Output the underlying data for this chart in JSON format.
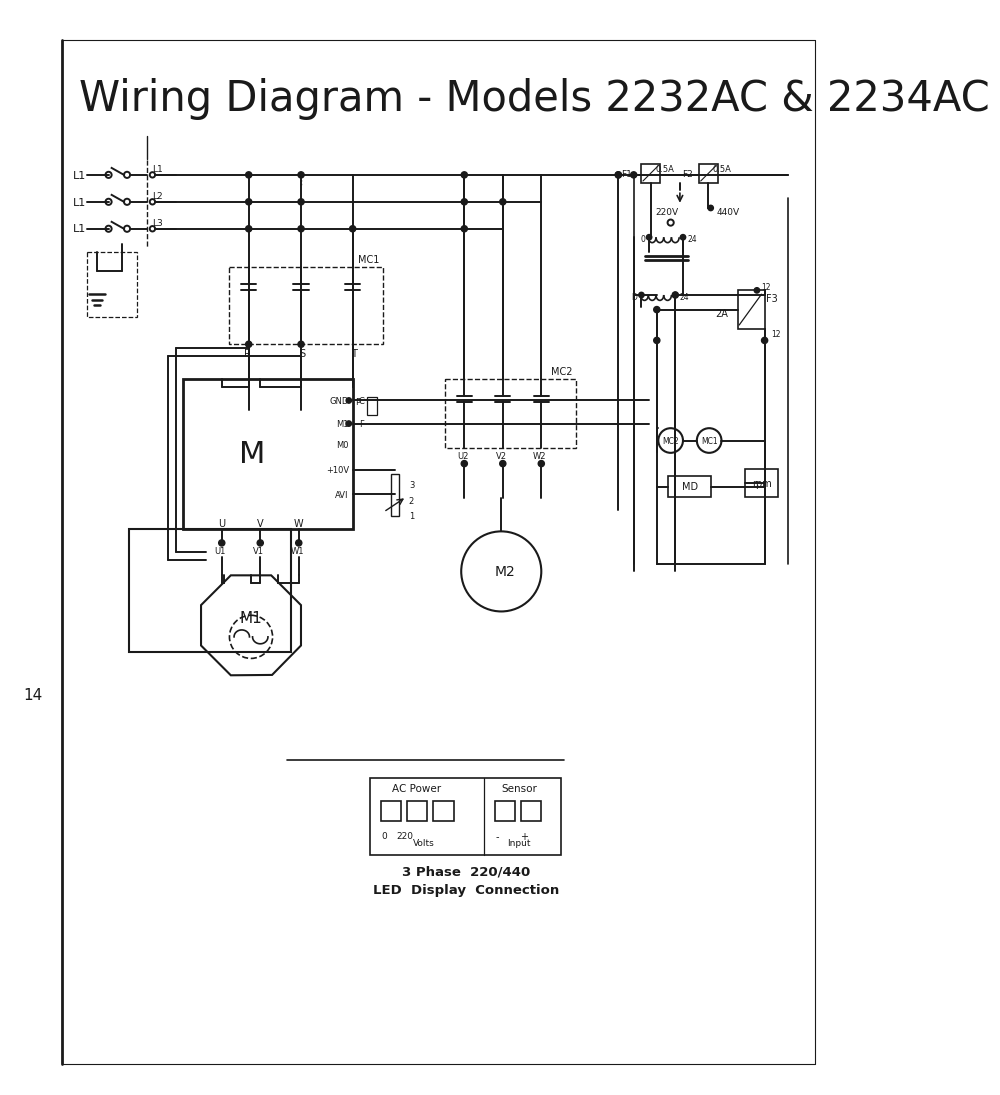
{
  "title": "Wiring Diagram - Models 2232AC & 2234AC",
  "page_number": "14",
  "bg": "#ffffff",
  "lc": "#1a1a1a",
  "title_fs": 30,
  "bottom_label1": "3 Phase  220/440",
  "bottom_label2": "LED  Display  Connection",
  "ac_power_label": "AC Power",
  "sensor_label": "Sensor"
}
